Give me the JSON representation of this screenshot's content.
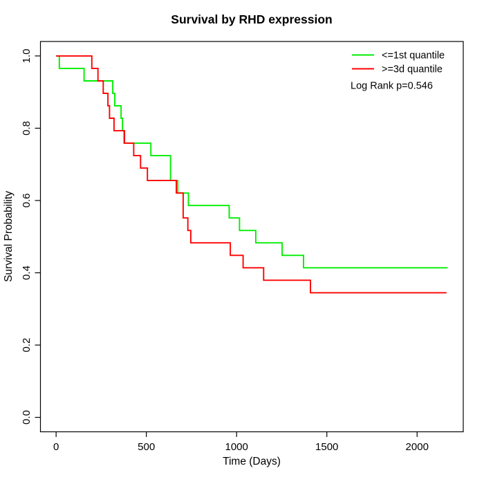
{
  "title": "Survival by RHD expression",
  "x_axis": {
    "label": "Time (Days)",
    "tick_labels": [
      "0",
      "500",
      "1000",
      "1500",
      "2000"
    ]
  },
  "y_axis": {
    "label": "Survival Probability",
    "tick_labels": [
      "0.0",
      "0.2",
      "0.4",
      "0.6",
      "0.8",
      "1.0"
    ]
  },
  "legend": {
    "entries": [
      {
        "label": "<=1st quantile",
        "color": "#00ee00"
      },
      {
        "label": ">=3d quantile",
        "color": "#ff0000"
      }
    ],
    "note": "Log Rank p=0.546"
  },
  "chart_data": {
    "type": "line",
    "subtype": "kaplan-meier-step",
    "title": "Survival by RHD expression",
    "xlabel": "Time (Days)",
    "ylabel": "Survival Probability",
    "xlim": [
      0,
      2169
    ],
    "ylim": [
      0,
      1
    ],
    "x_ticks": [
      0,
      500,
      1000,
      1500,
      2000
    ],
    "y_ticks": [
      0.0,
      0.2,
      0.4,
      0.6,
      0.8,
      1.0
    ],
    "grid": false,
    "legend_position": "top-right",
    "annotation": "Log Rank p=0.546",
    "axis_padding_fraction": 0.04,
    "series": [
      {
        "name": "<=1st quantile",
        "color": "#00ee00",
        "end_time": 2169,
        "points": [
          [
            0,
            1.0
          ],
          [
            18,
            0.9655
          ],
          [
            155,
            0.931
          ],
          [
            314,
            0.8966
          ],
          [
            325,
            0.8621
          ],
          [
            360,
            0.8276
          ],
          [
            368,
            0.7931
          ],
          [
            376,
            0.7586
          ],
          [
            525,
            0.7241
          ],
          [
            634,
            0.6552
          ],
          [
            674,
            0.6207
          ],
          [
            733,
            0.5862
          ],
          [
            959,
            0.5517
          ],
          [
            1016,
            0.5172
          ],
          [
            1106,
            0.4828
          ],
          [
            1252,
            0.4483
          ],
          [
            1371,
            0.4138
          ]
        ]
      },
      {
        "name": ">=3d quantile",
        "color": "#ff0000",
        "end_time": 2163,
        "points": [
          [
            0,
            1.0
          ],
          [
            198,
            0.9655
          ],
          [
            232,
            0.931
          ],
          [
            261,
            0.8966
          ],
          [
            287,
            0.8621
          ],
          [
            296,
            0.8276
          ],
          [
            321,
            0.7931
          ],
          [
            379,
            0.7586
          ],
          [
            430,
            0.7241
          ],
          [
            468,
            0.6897
          ],
          [
            506,
            0.6552
          ],
          [
            666,
            0.6207
          ],
          [
            704,
            0.5517
          ],
          [
            730,
            0.5172
          ],
          [
            746,
            0.4828
          ],
          [
            965,
            0.4483
          ],
          [
            1036,
            0.4138
          ],
          [
            1150,
            0.3793
          ],
          [
            1409,
            0.3448
          ]
        ]
      }
    ]
  }
}
